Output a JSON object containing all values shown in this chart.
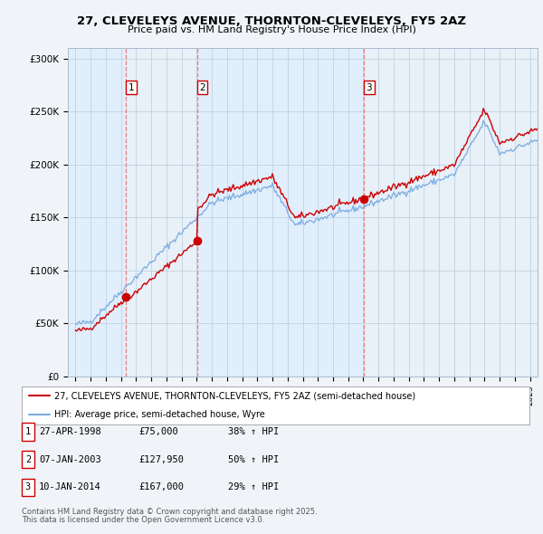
{
  "title1": "27, CLEVELEYS AVENUE, THORNTON-CLEVELEYS, FY5 2AZ",
  "title2": "Price paid vs. HM Land Registry's House Price Index (HPI)",
  "ylabel_ticks": [
    "£0",
    "£50K",
    "£100K",
    "£150K",
    "£200K",
    "£250K",
    "£300K"
  ],
  "ylabel_values": [
    0,
    50000,
    100000,
    150000,
    200000,
    250000,
    300000
  ],
  "ylim": [
    0,
    310000
  ],
  "transactions": [
    {
      "num": 1,
      "date": "27-APR-1998",
      "price": 75000,
      "change": "38% ↑ HPI",
      "year": 1998.32
    },
    {
      "num": 2,
      "date": "07-JAN-2003",
      "price": 127950,
      "change": "50% ↑ HPI",
      "year": 2003.02
    },
    {
      "num": 3,
      "date": "10-JAN-2014",
      "price": 167000,
      "change": "29% ↑ HPI",
      "year": 2014.03
    }
  ],
  "legend_line1": "27, CLEVELEYS AVENUE, THORNTON-CLEVELEYS, FY5 2AZ (semi-detached house)",
  "legend_line2": "HPI: Average price, semi-detached house, Wyre",
  "footer1": "Contains HM Land Registry data © Crown copyright and database right 2025.",
  "footer2": "This data is licensed under the Open Government Licence v3.0.",
  "line_color_red": "#cc0000",
  "line_color_blue": "#7aace0",
  "vline_color": "#e88080",
  "shade_color": "#ddeeff",
  "background_color": "#f0f4f8",
  "plot_bg_color": "#e8f0f8"
}
